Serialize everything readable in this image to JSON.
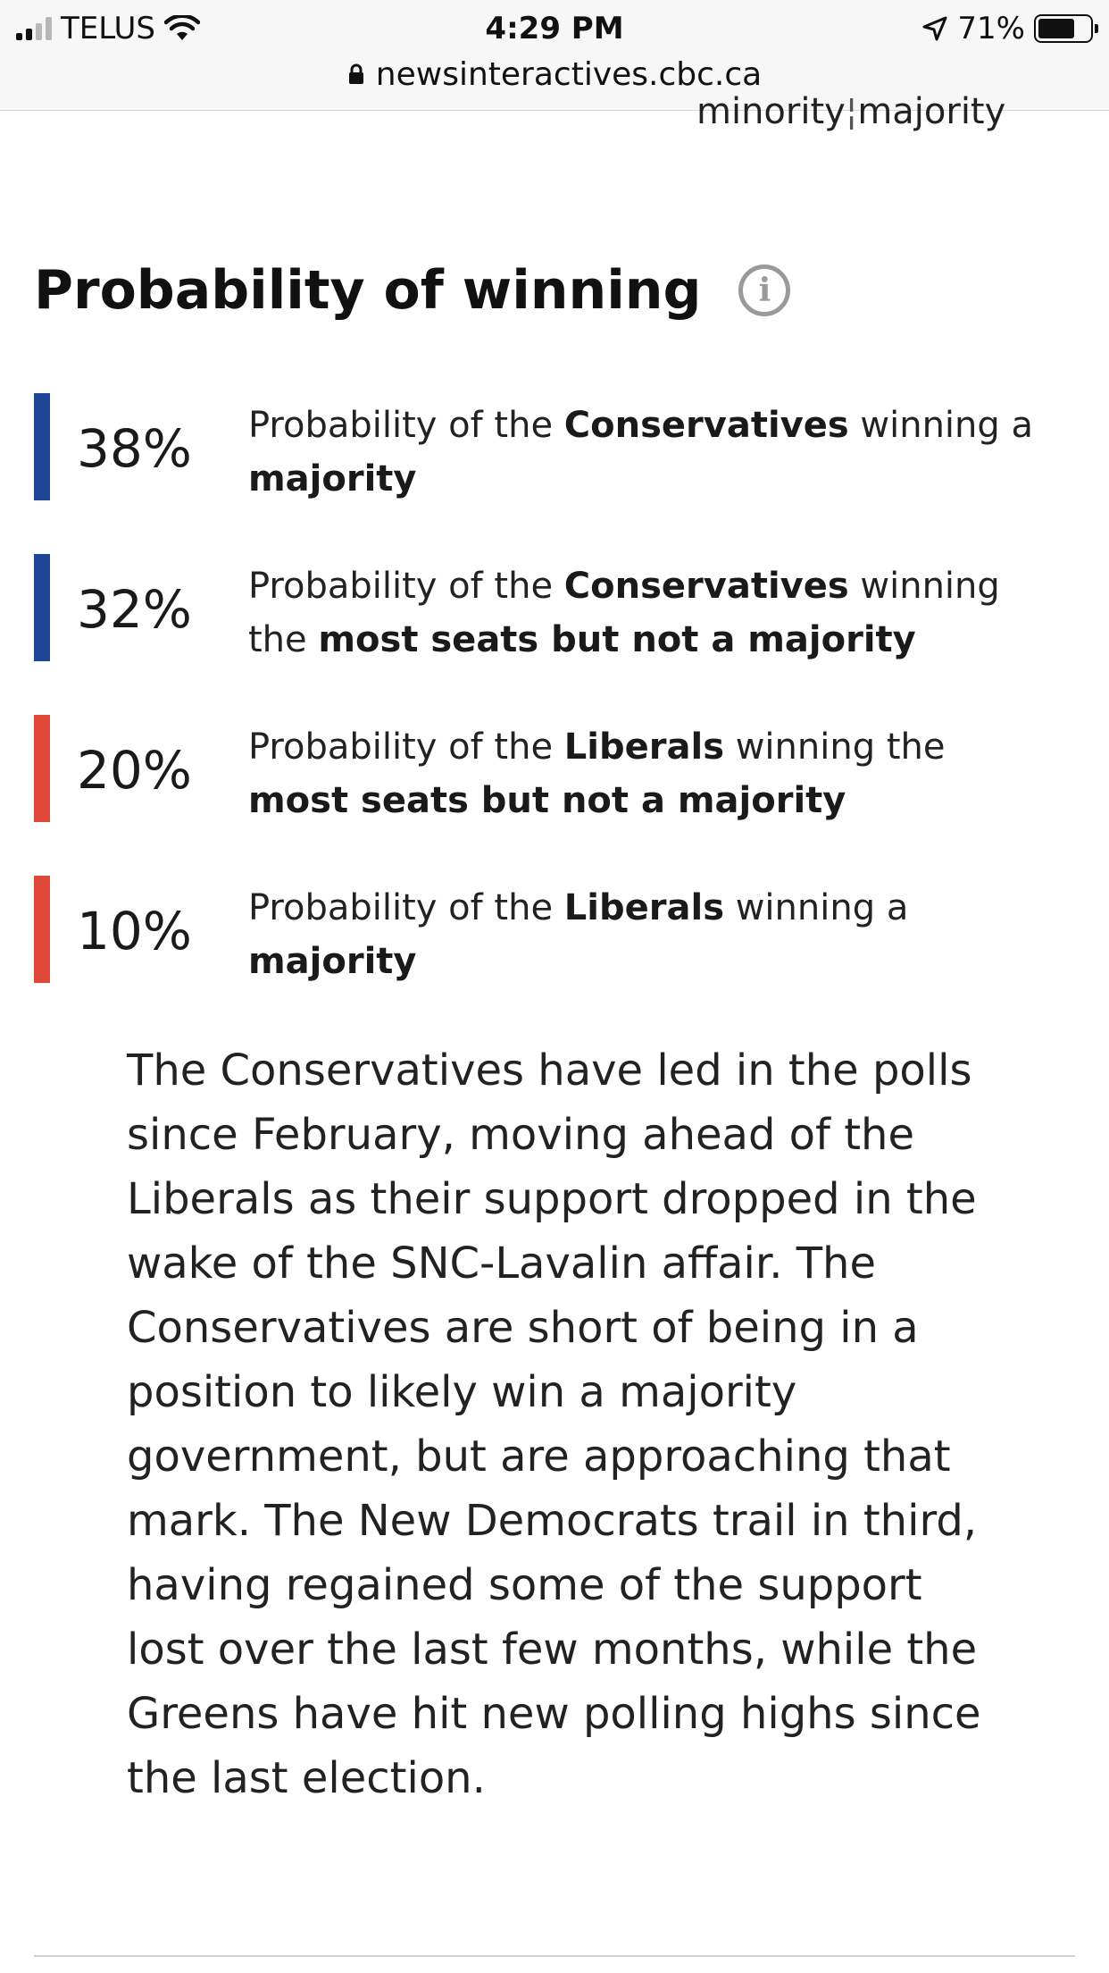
{
  "status_bar": {
    "carrier": "TELUS",
    "time": "4:29 PM",
    "battery_percent": "71%",
    "battery_level": 0.71,
    "url": "newsinteractives.cbc.ca"
  },
  "scale_labels": {
    "minority": "minority",
    "majority": "majority"
  },
  "section": {
    "title": "Probability of winning",
    "info_icon": "info-circle-icon"
  },
  "probabilities": [
    {
      "value": "38%",
      "party_color": "#1f4696",
      "pre": "Probability of the ",
      "party": "Conservatives",
      "mid": " winning a ",
      "outcome": "majority"
    },
    {
      "value": "32%",
      "party_color": "#1f4696",
      "pre": "Probability of the ",
      "party": "Conservatives",
      "mid": " winning the ",
      "outcome": "most seats but not a majority"
    },
    {
      "value": "20%",
      "party_color": "#e0483a",
      "pre": "Probability of the ",
      "party": "Liberals",
      "mid": " winning the ",
      "outcome": "most seats but not a majority"
    },
    {
      "value": "10%",
      "party_color": "#e0483a",
      "pre": "Probability of the ",
      "party": "Liberals",
      "mid": " winning a ",
      "outcome": "majority"
    }
  ],
  "paragraph": "The Conservatives have led in the polls since February, moving ahead of the Liberals as their support dropped in the wake of the SNC-Lavalin affair. The Conservatives are short of being in a position to likely win a majority government, but are approaching that mark. The New Democrats trail in third, having regained some of the support lost over the last few months, while the Greens have hit new polling highs since the last election."
}
